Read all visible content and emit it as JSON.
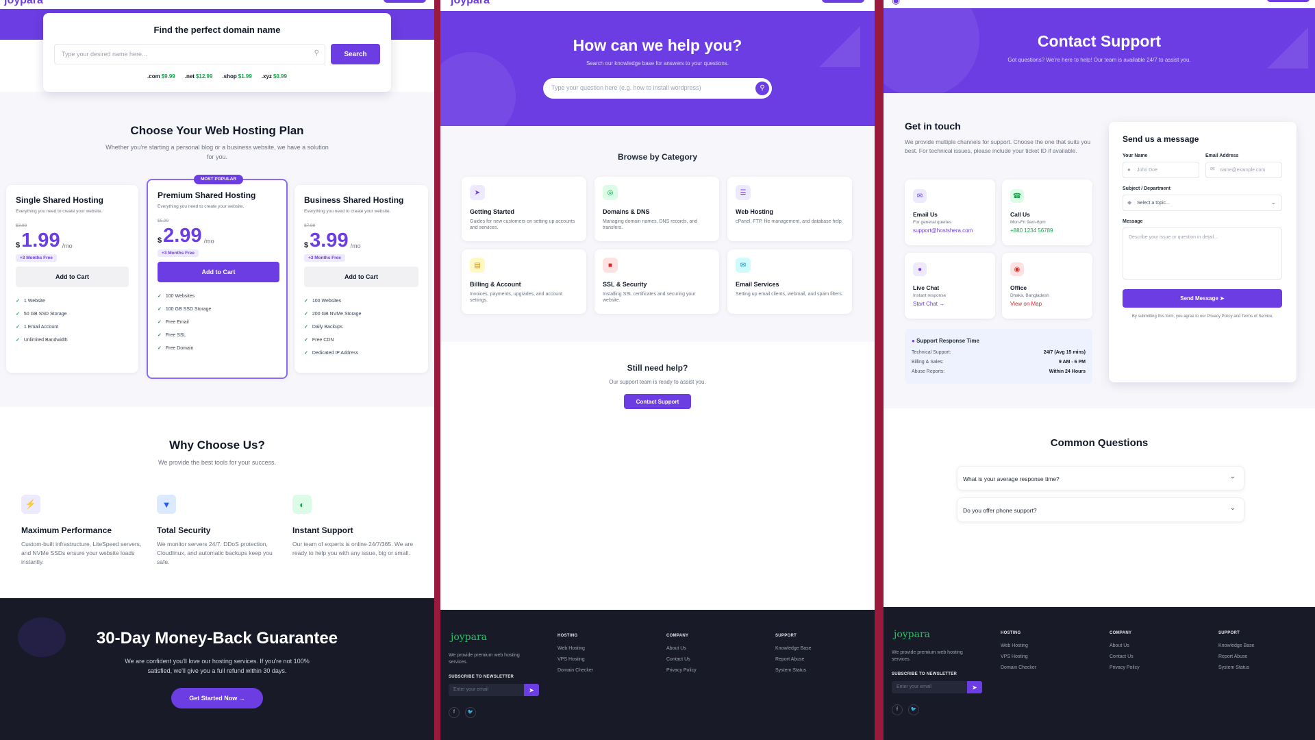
{
  "hosting": {
    "logo": "joypara",
    "domain_search": {
      "title": "Find the perfect domain name",
      "placeholder": "Type your desired name here...",
      "button": "Search",
      "tlds": [
        {
          "ext": ".com",
          "price": "$9.99"
        },
        {
          "ext": ".net",
          "price": "$12.99"
        },
        {
          "ext": ".shop",
          "price": "$1.99"
        },
        {
          "ext": ".xyz",
          "price": "$0.99"
        }
      ]
    },
    "plans_title": "Choose Your Web Hosting Plan",
    "plans_subtitle": "Whether you're starting a personal blog or a business website, we have a solution for you.",
    "plans": [
      {
        "name": "Single Shared Hosting",
        "desc": "Everything you need to create your website.",
        "old_price": "$3.99",
        "currency": "$",
        "price": "1.99",
        "period": "/mo",
        "badge": "+3 Months Free",
        "cta": "Add to Cart",
        "features": [
          "1 Website",
          "50 GB SSD Storage",
          "1 Email Account",
          "Unlimited Bandwidth"
        ]
      },
      {
        "name": "Premium Shared Hosting",
        "desc": "Everything you need to create your website.",
        "old_price": "$5.99",
        "currency": "$",
        "price": "2.99",
        "period": "/mo",
        "badge": "+3 Months Free",
        "cta": "Add to Cart",
        "tag": "MOST POPULAR",
        "features": [
          "100 Websites",
          "100 GB SSD Storage",
          "Free Email",
          "Free SSL",
          "Free Domain"
        ]
      },
      {
        "name": "Business Shared Hosting",
        "desc": "Everything you need to create your website.",
        "old_price": "$7.99",
        "currency": "$",
        "price": "3.99",
        "period": "/mo",
        "badge": "+3 Months Free",
        "cta": "Add to Cart",
        "features": [
          "100 Websites",
          "200 GB NVMe Storage",
          "Daily Backups",
          "Free CDN",
          "Dedicated IP Address"
        ]
      }
    ],
    "why_title": "Why Choose Us?",
    "why_subtitle": "We provide the best tools for your success.",
    "why_items": [
      {
        "title": "Maximum Performance",
        "text": "Custom-built infrastructure, LiteSpeed servers, and NVMe SSDs ensure your website loads instantly.",
        "icon": "bolt-icon"
      },
      {
        "title": "Total Security",
        "text": "We monitor servers 24/7. DDoS protection, Cloudlinux, and automatic backups keep you safe.",
        "icon": "shield-icon"
      },
      {
        "title": "Instant Support",
        "text": "Our team of experts is online 24/7/365. We are ready to help you with any issue, big or small.",
        "icon": "headset-icon"
      }
    ],
    "guarantee_title": "30-Day Money-Back Guarantee",
    "guarantee_text": "We are confident you'll love our hosting services. If you're not 100% satisfied, we'll give you a full refund within 30 days.",
    "guarantee_cta": "Get Started Now →"
  },
  "help": {
    "logo": "joypara",
    "hero_title": "How can we help you?",
    "hero_subtitle": "Search our knowledge base for answers to your questions.",
    "search_placeholder": "Type your question here (e.g. how to install wordpress)",
    "browse_title": "Browse by Category",
    "categories": [
      {
        "title": "Getting Started",
        "text": "Guides for new customers on setting up accounts and services.",
        "icon": "rocket-icon",
        "glyph": "➤",
        "color": "#6c3de2",
        "bg": "#ede9fe"
      },
      {
        "title": "Domains & DNS",
        "text": "Managing domain names, DNS records, and transfers.",
        "icon": "globe-icon",
        "glyph": "◎",
        "color": "#16a34a",
        "bg": "#dcfce7"
      },
      {
        "title": "Web Hosting",
        "text": "cPanel, FTP, file management, and database help.",
        "icon": "server-icon",
        "glyph": "☰",
        "color": "#7c3aed",
        "bg": "#ede9fe"
      },
      {
        "title": "Billing & Account",
        "text": "Invoices, payments, upgrades, and account settings.",
        "icon": "invoice-icon",
        "glyph": "▤",
        "color": "#ca8a04",
        "bg": "#fef9c3"
      },
      {
        "title": "SSL & Security",
        "text": "Installing SSL certificates and securing your website.",
        "icon": "lock-icon",
        "glyph": "■",
        "color": "#dc2626",
        "bg": "#fee2e2"
      },
      {
        "title": "Email Services",
        "text": "Setting up email clients, webmail, and spam filters.",
        "icon": "envelope-icon",
        "glyph": "✉",
        "color": "#0891b2",
        "bg": "#cffafe"
      }
    ],
    "still_title": "Still need help?",
    "still_text": "Our support team is ready to assist you.",
    "still_cta": "Contact Support"
  },
  "contact": {
    "hero_title": "Contact Support",
    "hero_subtitle": "Got questions? We're here to help! Our team is available 24/7 to assist you.",
    "git_title": "Get in touch",
    "git_text": "We provide multiple channels for support. Choose the one that suits you best. For technical issues, please include your ticket ID if available.",
    "channels": [
      {
        "title": "Email Us",
        "sub": "For general queries",
        "link": "support@hostshera.com",
        "icon": "envelope-icon",
        "glyph": "✉",
        "color": "#6c3de2",
        "bg": "#ede9fe",
        "linkcolor": "#6c3de2"
      },
      {
        "title": "Call Us",
        "sub": "Mon-Fri 9am-6pm",
        "link": "+880 1234 56789",
        "icon": "phone-icon",
        "glyph": "☎",
        "color": "#16a34a",
        "bg": "#dcfce7",
        "linkcolor": "#16a34a"
      },
      {
        "title": "Live Chat",
        "sub": "Instant response",
        "link": "Start Chat →",
        "icon": "chat-icon",
        "glyph": "●",
        "color": "#7c3aed",
        "bg": "#ede9fe",
        "linkcolor": "#6c3de2"
      },
      {
        "title": "Office",
        "sub": "Dhaka, Bangladesh",
        "link": "View on Map",
        "icon": "map-pin-icon",
        "glyph": "◉",
        "color": "#dc2626",
        "bg": "#fee2e2",
        "linkcolor": "#dc2626"
      }
    ],
    "response_title": "Support Response Time",
    "response_rows": [
      {
        "label": "Technical Support:",
        "value": "24/7 (Avg 15 mins)"
      },
      {
        "label": "Billing & Sales:",
        "value": "9 AM - 6 PM"
      },
      {
        "label": "Abuse Reports:",
        "value": "Within 24 Hours"
      }
    ],
    "form": {
      "title": "Send us a message",
      "name_label": "Your Name",
      "name_placeholder": "John Doe",
      "email_label": "Email Address",
      "email_placeholder": "name@example.com",
      "subject_label": "Subject / Department",
      "subject_value": "Select a topic...",
      "message_label": "Message",
      "message_placeholder": "Describe your issue or question in detail...",
      "submit": "Send Message",
      "terms": "By submitting this form, you agree to our Privacy Policy and Terms of Service."
    },
    "faq_title": "Common Questions",
    "faqs": [
      "What is your average response time?",
      "Do you offer phone support?"
    ]
  },
  "footer": {
    "logo": "joypara",
    "tagline": "We provide premium web hosting services.",
    "newsletter_label": "SUBSCRIBE TO NEWSLETTER",
    "newsletter_placeholder": "Enter your email",
    "columns": [
      {
        "title": "HOSTING",
        "links": [
          "Web Hosting",
          "VPS Hosting",
          "Domain Checker"
        ]
      },
      {
        "title": "COMPANY",
        "links": [
          "About Us",
          "Contact Us",
          "Privacy Policy"
        ]
      },
      {
        "title": "SUPPORT",
        "links": [
          "Knowledge Base",
          "Report Abuse",
          "System Status"
        ]
      }
    ],
    "social": [
      "f",
      "🐦"
    ]
  },
  "colors": {
    "accent": "#6c3de2",
    "dark": "#181a28",
    "divider": "#9a1a3e"
  }
}
